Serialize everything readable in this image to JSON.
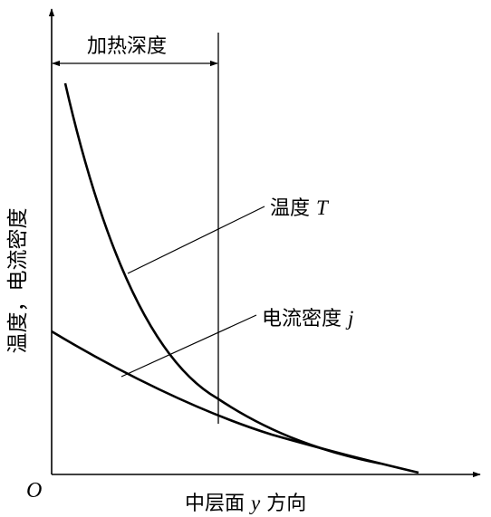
{
  "figure": {
    "y_axis_label": "温度，电流密度",
    "x_axis_label_prefix": "中层面 ",
    "x_axis_var": "y",
    "x_axis_label_suffix": " 方向",
    "origin_label": "O",
    "heating_depth_label": "加热深度",
    "temperature_label": "温度 ",
    "temperature_symbol": "T",
    "current_density_label": "电流密度 ",
    "current_density_symbol": "j"
  },
  "colors": {
    "ink": "#000000",
    "background": "#ffffff"
  }
}
